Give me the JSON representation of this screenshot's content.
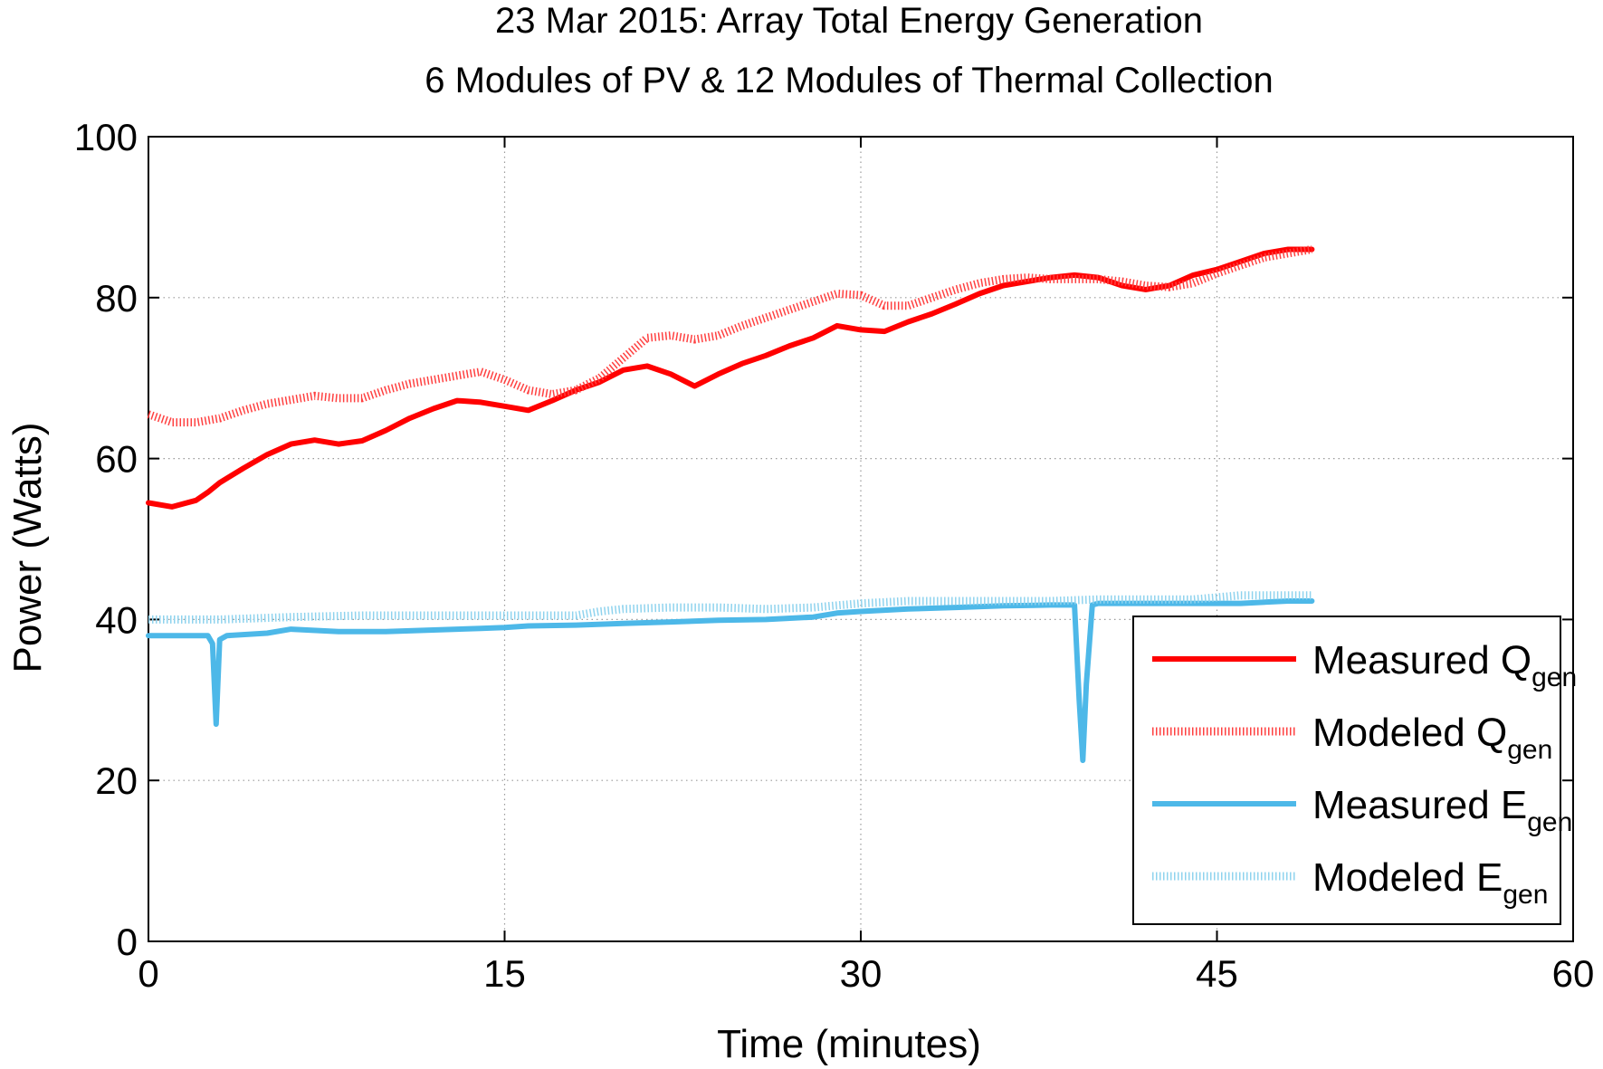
{
  "chart_data": {
    "type": "line",
    "title_lines": [
      "23 Mar 2015: Array Total Energy Generation",
      "6 Modules of PV & 12 Modules of Thermal Collection"
    ],
    "xlabel": "Time (minutes)",
    "ylabel": "Power (Watts)",
    "xlim": [
      0,
      60
    ],
    "ylim": [
      0,
      100
    ],
    "xticks": [
      0,
      15,
      30,
      45,
      60
    ],
    "yticks": [
      0,
      20,
      40,
      60,
      80,
      100
    ],
    "grid": true,
    "legend_position": "bottom-right",
    "series": [
      {
        "name": "Measured Q",
        "subscript": "gen",
        "color": "#ff0000",
        "style": "solid",
        "x": [
          0,
          1,
          2,
          2.5,
          3,
          4,
          5,
          6,
          7,
          8,
          9,
          10,
          11,
          12,
          13,
          14,
          15,
          16,
          17,
          18,
          19,
          20,
          21,
          22,
          23,
          24,
          25,
          26,
          27,
          28,
          29,
          30,
          31,
          32,
          33,
          34,
          35,
          36,
          37,
          38,
          39,
          40,
          41,
          42,
          43,
          44,
          45,
          46,
          47,
          48,
          49
        ],
        "y": [
          54.5,
          54,
          54.8,
          55.8,
          57,
          58.8,
          60.5,
          61.8,
          62.3,
          61.8,
          62.2,
          63.5,
          65,
          66.2,
          67.2,
          67,
          66.5,
          66,
          67.2,
          68.5,
          69.5,
          71,
          71.5,
          70.5,
          69,
          70.5,
          71.8,
          72.8,
          74,
          75,
          76.5,
          76,
          75.8,
          77,
          78,
          79.2,
          80.5,
          81.5,
          82,
          82.5,
          82.8,
          82.5,
          81.5,
          81,
          81.5,
          82.8,
          83.5,
          84.5,
          85.5,
          86,
          86
        ]
      },
      {
        "name": "Modeled Q",
        "subscript": "gen",
        "color": "#ff4040",
        "style": "dotted",
        "x": [
          0,
          1,
          2,
          3,
          4,
          5,
          6,
          7,
          8,
          9,
          10,
          11,
          12,
          13,
          14,
          15,
          16,
          17,
          18,
          19,
          20,
          21,
          22,
          23,
          24,
          25,
          26,
          27,
          28,
          29,
          30,
          31,
          32,
          33,
          34,
          35,
          36,
          37,
          38,
          39,
          40,
          41,
          42,
          43,
          44,
          45,
          46,
          47,
          48,
          49
        ],
        "y": [
          65.5,
          64.5,
          64.5,
          65,
          66,
          66.8,
          67.3,
          67.8,
          67.5,
          67.5,
          68.5,
          69.3,
          69.8,
          70.3,
          70.8,
          69.8,
          68.5,
          68,
          68.5,
          70,
          72.5,
          75,
          75.3,
          74.8,
          75.3,
          76.5,
          77.5,
          78.5,
          79.5,
          80.5,
          80.3,
          79,
          79,
          80,
          81,
          81.8,
          82.3,
          82.5,
          82.3,
          82.3,
          82.3,
          82,
          81.5,
          81.3,
          81.8,
          83,
          84,
          85,
          85.5,
          86
        ]
      },
      {
        "name": "Measured E",
        "subscript": "gen",
        "color": "#4db8e8",
        "style": "solid",
        "x": [
          0,
          2,
          2.5,
          2.7,
          2.85,
          3.0,
          3.3,
          5,
          6,
          8,
          10,
          12,
          14,
          15,
          16,
          18,
          20,
          22,
          24,
          26,
          28,
          29,
          30,
          32,
          34,
          36,
          38,
          39.0,
          39.2,
          39.35,
          39.5,
          39.75,
          40,
          42,
          44,
          46,
          48,
          49
        ],
        "y": [
          38,
          38,
          38,
          37,
          27,
          37.5,
          38,
          38.3,
          38.8,
          38.5,
          38.5,
          38.7,
          38.9,
          39,
          39.2,
          39.3,
          39.5,
          39.7,
          39.9,
          40,
          40.3,
          40.8,
          41,
          41.3,
          41.5,
          41.7,
          41.8,
          41.8,
          30,
          22.5,
          32,
          41.8,
          42,
          42,
          42,
          42,
          42.3,
          42.3
        ]
      },
      {
        "name": "Modeled E",
        "subscript": "gen",
        "color": "#8fd3ee",
        "style": "dotted",
        "x": [
          0,
          3,
          6,
          9,
          12,
          15,
          18,
          19,
          20,
          22,
          24,
          26,
          28,
          30,
          32,
          34,
          36,
          38,
          40,
          42,
          44,
          46,
          48,
          49
        ],
        "y": [
          40,
          40,
          40.3,
          40.5,
          40.5,
          40.5,
          40.5,
          41,
          41.3,
          41.5,
          41.5,
          41.3,
          41.5,
          42,
          42.3,
          42.3,
          42.3,
          42.3,
          42.5,
          42.5,
          42.5,
          43,
          43,
          43
        ]
      }
    ]
  }
}
